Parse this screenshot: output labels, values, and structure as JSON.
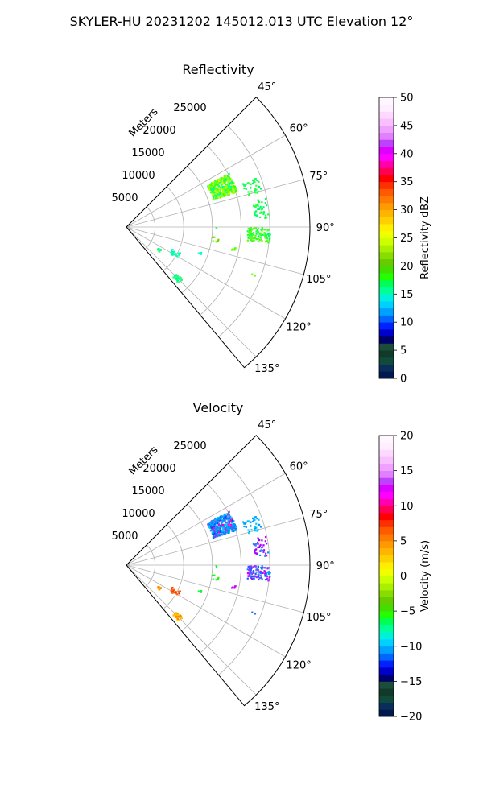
{
  "figure": {
    "suptitle": "SKYLER-HU  20231202  145012.013 UTC Elevation 12°"
  },
  "chart_data": [
    {
      "type": "polar-sector",
      "title": "Reflectivity",
      "radial_label": "Meters",
      "radial_ticks": [
        "5000",
        "10000",
        "15000",
        "20000",
        "25000"
      ],
      "r_max": 32000,
      "theta_range_deg": [
        45,
        140
      ],
      "angle_ticks": [
        "45°",
        "60°",
        "75°",
        "90°",
        "105°",
        "120°",
        "135°"
      ],
      "grid": true,
      "colorbar": {
        "label": "Reflectivity dBZ",
        "min": 0,
        "max": 50,
        "ticks": [
          "0",
          "5",
          "10",
          "15",
          "20",
          "25",
          "30",
          "35",
          "40",
          "45",
          "50"
        ],
        "colors": [
          "#001a4d",
          "#0b2d5c",
          "#0f4a3a",
          "#123a2a",
          "#1a4d3a",
          "#00006a",
          "#0000cc",
          "#0022ff",
          "#0066ff",
          "#00a0ff",
          "#00d0ff",
          "#00f0e0",
          "#00ff99",
          "#00ff55",
          "#22ff00",
          "#44dd00",
          "#66cc00",
          "#88dd00",
          "#aaee00",
          "#ccff00",
          "#eeff00",
          "#ffee00",
          "#ffd000",
          "#ffb400",
          "#ff9a00",
          "#ff7a00",
          "#ff5a00",
          "#ff3000",
          "#ff0000",
          "#ff0055",
          "#ff00aa",
          "#ff00ff",
          "#dd00ff",
          "#c040ff",
          "#e080ff",
          "#f0a0ff",
          "#f8c0ff",
          "#ffd8ff",
          "#ffeeff",
          "#fff6ff"
        ]
      },
      "clusters": [
        {
          "az": 67,
          "r": 18000,
          "spread_az": 5,
          "spread_r": 2200,
          "n": 340,
          "color_index": 0,
          "colors": [
            "#33ff00",
            "#66ff00",
            "#00ff66",
            "#aaff00",
            "#00ff99",
            "#99ff33",
            "#ccff00"
          ]
        },
        {
          "az": 72,
          "r": 23000,
          "spread_az": 3,
          "spread_r": 1500,
          "n": 40,
          "color_index": 0,
          "colors": [
            "#00ff66",
            "#33ff33"
          ]
        },
        {
          "az": 82,
          "r": 23500,
          "spread_az": 4,
          "spread_r": 1200,
          "n": 40,
          "color_index": 0,
          "colors": [
            "#00ff66",
            "#33ff33"
          ]
        },
        {
          "az": 93,
          "r": 23000,
          "spread_az": 3,
          "spread_r": 2000,
          "n": 110,
          "color_index": 0,
          "colors": [
            "#00ff66",
            "#33ff33",
            "#66ff00"
          ]
        },
        {
          "az": 101,
          "r": 19000,
          "spread_az": 1,
          "spread_r": 400,
          "n": 6,
          "color_index": 0,
          "colors": [
            "#55ff00"
          ]
        },
        {
          "az": 98,
          "r": 15500,
          "spread_az": 2,
          "spread_r": 600,
          "n": 8,
          "color_index": 0,
          "colors": [
            "#55ff00",
            "#88cc00"
          ]
        },
        {
          "az": 91,
          "r": 15500,
          "spread_az": 1,
          "spread_r": 200,
          "n": 2,
          "color_index": 0,
          "colors": [
            "#33ff66"
          ]
        },
        {
          "az": 118,
          "r": 9500,
          "spread_az": 3,
          "spread_r": 800,
          "n": 20,
          "color_index": 0,
          "colors": [
            "#00ffcc",
            "#00ff99"
          ]
        },
        {
          "az": 109,
          "r": 13500,
          "spread_az": 1,
          "spread_r": 300,
          "n": 3,
          "color_index": 0,
          "colors": [
            "#00ffcc"
          ]
        },
        {
          "az": 125,
          "r": 7000,
          "spread_az": 2,
          "spread_r": 500,
          "n": 10,
          "color_index": 0,
          "colors": [
            "#33ff66",
            "#00ff99"
          ]
        },
        {
          "az": 135,
          "r": 12500,
          "spread_az": 2,
          "spread_r": 700,
          "n": 30,
          "color_index": 0,
          "colors": [
            "#00ff99",
            "#33ff66"
          ]
        },
        {
          "az": 111,
          "r": 23500,
          "spread_az": 1,
          "spread_r": 300,
          "n": 3,
          "color_index": 0,
          "colors": [
            "#66ff00"
          ]
        }
      ]
    },
    {
      "type": "polar-sector",
      "title": "Velocity",
      "radial_label": "Meters",
      "radial_ticks": [
        "5000",
        "10000",
        "15000",
        "20000",
        "25000"
      ],
      "r_max": 32000,
      "theta_range_deg": [
        45,
        140
      ],
      "angle_ticks": [
        "45°",
        "60°",
        "75°",
        "90°",
        "105°",
        "120°",
        "135°"
      ],
      "grid": true,
      "colorbar": {
        "label": "Velocity (m/s)",
        "min": -20,
        "max": 20,
        "ticks": [
          "−20",
          "−15",
          "−10",
          "−5",
          "0",
          "5",
          "10",
          "15",
          "20"
        ],
        "colors": [
          "#001a4d",
          "#0b2d5c",
          "#0f4a3a",
          "#123a2a",
          "#1a4d3a",
          "#00006a",
          "#0000cc",
          "#0022ff",
          "#0066ff",
          "#00a0ff",
          "#00d0ff",
          "#00f0e0",
          "#00ff99",
          "#00ff55",
          "#22ff00",
          "#44dd00",
          "#66cc00",
          "#88dd00",
          "#aaee00",
          "#ccff00",
          "#eeff00",
          "#ffee00",
          "#ffd000",
          "#ffb400",
          "#ff9a00",
          "#ff7a00",
          "#ff5a00",
          "#ff3000",
          "#ff0000",
          "#ff0055",
          "#ff00aa",
          "#ff00ff",
          "#dd00ff",
          "#c040ff",
          "#e080ff",
          "#f0a0ff",
          "#f8c0ff",
          "#ffd8ff",
          "#ffeeff",
          "#fff6ff"
        ]
      },
      "clusters": [
        {
          "az": 67,
          "r": 18000,
          "spread_az": 5,
          "spread_r": 2200,
          "n": 340,
          "color_index": 0,
          "colors": [
            "#0088ff",
            "#00aaff",
            "#0044ff",
            "#00ccff",
            "#ff00cc",
            "#3366ff",
            "#0099ee"
          ]
        },
        {
          "az": 72,
          "r": 23000,
          "spread_az": 3,
          "spread_r": 1500,
          "n": 40,
          "color_index": 0,
          "colors": [
            "#0099ff",
            "#00ccff"
          ]
        },
        {
          "az": 82,
          "r": 23500,
          "spread_az": 4,
          "spread_r": 1200,
          "n": 40,
          "color_index": 0,
          "colors": [
            "#cc00ff",
            "#9900ff",
            "#0099ff"
          ]
        },
        {
          "az": 93,
          "r": 23000,
          "spread_az": 3,
          "spread_r": 2000,
          "n": 110,
          "color_index": 0,
          "colors": [
            "#0099ff",
            "#cc00ff",
            "#9933ff",
            "#0066ff"
          ]
        },
        {
          "az": 101,
          "r": 19000,
          "spread_az": 1,
          "spread_r": 400,
          "n": 6,
          "color_index": 0,
          "colors": [
            "#cc00ff"
          ]
        },
        {
          "az": 98,
          "r": 15500,
          "spread_az": 2,
          "spread_r": 600,
          "n": 8,
          "color_index": 0,
          "colors": [
            "#00ff33",
            "#33ee00"
          ]
        },
        {
          "az": 91,
          "r": 15500,
          "spread_az": 1,
          "spread_r": 200,
          "n": 2,
          "color_index": 0,
          "colors": [
            "#00ff33"
          ]
        },
        {
          "az": 118,
          "r": 9500,
          "spread_az": 3,
          "spread_r": 800,
          "n": 20,
          "color_index": 0,
          "colors": [
            "#ff3300",
            "#ff6600"
          ]
        },
        {
          "az": 109,
          "r": 13500,
          "spread_az": 1,
          "spread_r": 300,
          "n": 3,
          "color_index": 0,
          "colors": [
            "#00ff33"
          ]
        },
        {
          "az": 125,
          "r": 7000,
          "spread_az": 2,
          "spread_r": 500,
          "n": 10,
          "color_index": 0,
          "colors": [
            "#ffaa00",
            "#ff8800"
          ]
        },
        {
          "az": 135,
          "r": 12500,
          "spread_az": 2,
          "spread_r": 700,
          "n": 30,
          "color_index": 0,
          "colors": [
            "#ffaa00",
            "#ff8800",
            "#ffcc00"
          ]
        },
        {
          "az": 111,
          "r": 23500,
          "spread_az": 1,
          "spread_r": 300,
          "n": 3,
          "color_index": 0,
          "colors": [
            "#3366ff"
          ]
        }
      ]
    }
  ]
}
